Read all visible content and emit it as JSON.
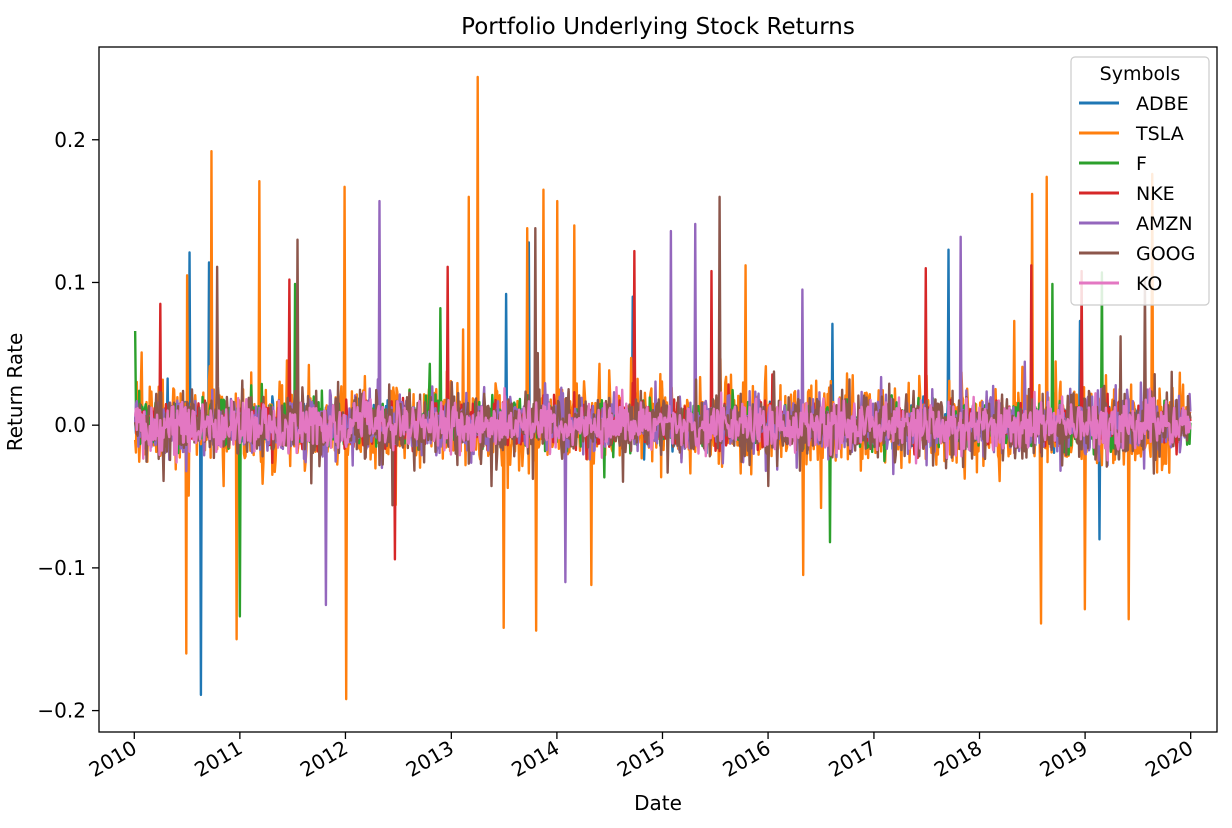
{
  "chart_data": {
    "type": "line",
    "title": "Portfolio Underlying Stock Returns",
    "xlabel": "Date",
    "ylabel": "Return Rate",
    "xlim": [
      "2009-09-01",
      "2020-04-01"
    ],
    "ylim": [
      -0.215,
      0.265
    ],
    "x_ticks": [
      "2010",
      "2011",
      "2012",
      "2013",
      "2014",
      "2015",
      "2016",
      "2017",
      "2018",
      "2019",
      "2020"
    ],
    "y_ticks": [
      -0.2,
      -0.1,
      0.0,
      0.1,
      0.2
    ],
    "y_tick_labels": [
      "−0.2",
      "−0.1",
      "0.0",
      "0.1",
      "0.2"
    ],
    "grid": false,
    "legend": {
      "title": "Symbols",
      "placement": "top-right"
    },
    "x_range": [
      "2010-01-04",
      "2019-12-31"
    ],
    "series": [
      {
        "name": "ADBE",
        "color": "#1f77b4",
        "base_amp": 0.022,
        "spikes": [
          [
            "2010-07-10",
            0.121
          ],
          [
            "2010-08-20",
            -0.189
          ],
          [
            "2010-09-15",
            0.114
          ],
          [
            "2013-07-10",
            0.092
          ],
          [
            "2013-09-25",
            0.128
          ],
          [
            "2014-09-20",
            0.09
          ],
          [
            "2016-08-10",
            0.071
          ],
          [
            "2017-09-15",
            0.123
          ],
          [
            "2018-12-15",
            0.073
          ],
          [
            "2019-02-20",
            -0.08
          ]
        ]
      },
      {
        "name": "TSLA",
        "color": "#ff7f0e",
        "base_amp": 0.045,
        "spikes": [
          [
            "2010-06-29",
            -0.16
          ],
          [
            "2010-07-02",
            0.105
          ],
          [
            "2010-09-25",
            0.192
          ],
          [
            "2010-12-20",
            -0.15
          ],
          [
            "2011-03-10",
            0.171
          ],
          [
            "2011-12-29",
            0.167
          ],
          [
            "2012-01-05",
            -0.192
          ],
          [
            "2013-03-01",
            0.16
          ],
          [
            "2013-04-01",
            0.244
          ],
          [
            "2013-07-01",
            -0.142
          ],
          [
            "2013-09-20",
            0.138
          ],
          [
            "2013-10-20",
            -0.144
          ],
          [
            "2013-11-15",
            0.165
          ],
          [
            "2014-01-01",
            0.157
          ],
          [
            "2014-03-01",
            0.14
          ],
          [
            "2014-05-01",
            -0.112
          ],
          [
            "2015-10-15",
            0.112
          ],
          [
            "2016-05-01",
            -0.105
          ],
          [
            "2018-05-01",
            0.073
          ],
          [
            "2018-07-01",
            0.162
          ],
          [
            "2018-08-01",
            -0.139
          ],
          [
            "2018-08-20",
            0.174
          ],
          [
            "2019-01-01",
            -0.129
          ],
          [
            "2019-06-01",
            -0.136
          ],
          [
            "2019-08-20",
            0.176
          ]
        ]
      },
      {
        "name": "F",
        "color": "#2ca02c",
        "base_amp": 0.025,
        "spikes": [
          [
            "2010-01-05",
            0.066
          ],
          [
            "2011-01-01",
            -0.134
          ],
          [
            "2011-07-10",
            0.099
          ],
          [
            "2012-11-25",
            0.082
          ],
          [
            "2016-08-01",
            -0.082
          ],
          [
            "2018-09-10",
            0.099
          ],
          [
            "2019-03-01",
            0.107
          ]
        ]
      },
      {
        "name": "NKE",
        "color": "#d62728",
        "base_amp": 0.022,
        "spikes": [
          [
            "2010-04-01",
            0.085
          ],
          [
            "2011-06-20",
            0.102
          ],
          [
            "2012-06-20",
            -0.094
          ],
          [
            "2012-12-20",
            0.111
          ],
          [
            "2014-09-25",
            0.122
          ],
          [
            "2015-06-20",
            0.108
          ],
          [
            "2017-06-29",
            0.11
          ],
          [
            "2018-06-29",
            0.112
          ],
          [
            "2018-12-20",
            0.108
          ]
        ]
      },
      {
        "name": "AMZN",
        "color": "#9467bd",
        "base_amp": 0.03,
        "spikes": [
          [
            "2011-10-25",
            -0.126
          ],
          [
            "2012-04-27",
            0.157
          ],
          [
            "2014-01-31",
            -0.11
          ],
          [
            "2015-01-30",
            0.136
          ],
          [
            "2015-04-24",
            0.141
          ],
          [
            "2016-04-29",
            0.095
          ],
          [
            "2017-10-27",
            0.132
          ]
        ]
      },
      {
        "name": "GOOG",
        "color": "#8c564b",
        "base_amp": 0.035,
        "spikes": [
          [
            "2010-10-15",
            0.111
          ],
          [
            "2011-07-20",
            0.13
          ],
          [
            "2013-10-18",
            0.138
          ],
          [
            "2015-07-17",
            0.16
          ],
          [
            "2019-07-26",
            0.101
          ]
        ]
      },
      {
        "name": "KO",
        "color": "#e377c2",
        "base_amp": 0.026,
        "spikes": []
      }
    ]
  }
}
